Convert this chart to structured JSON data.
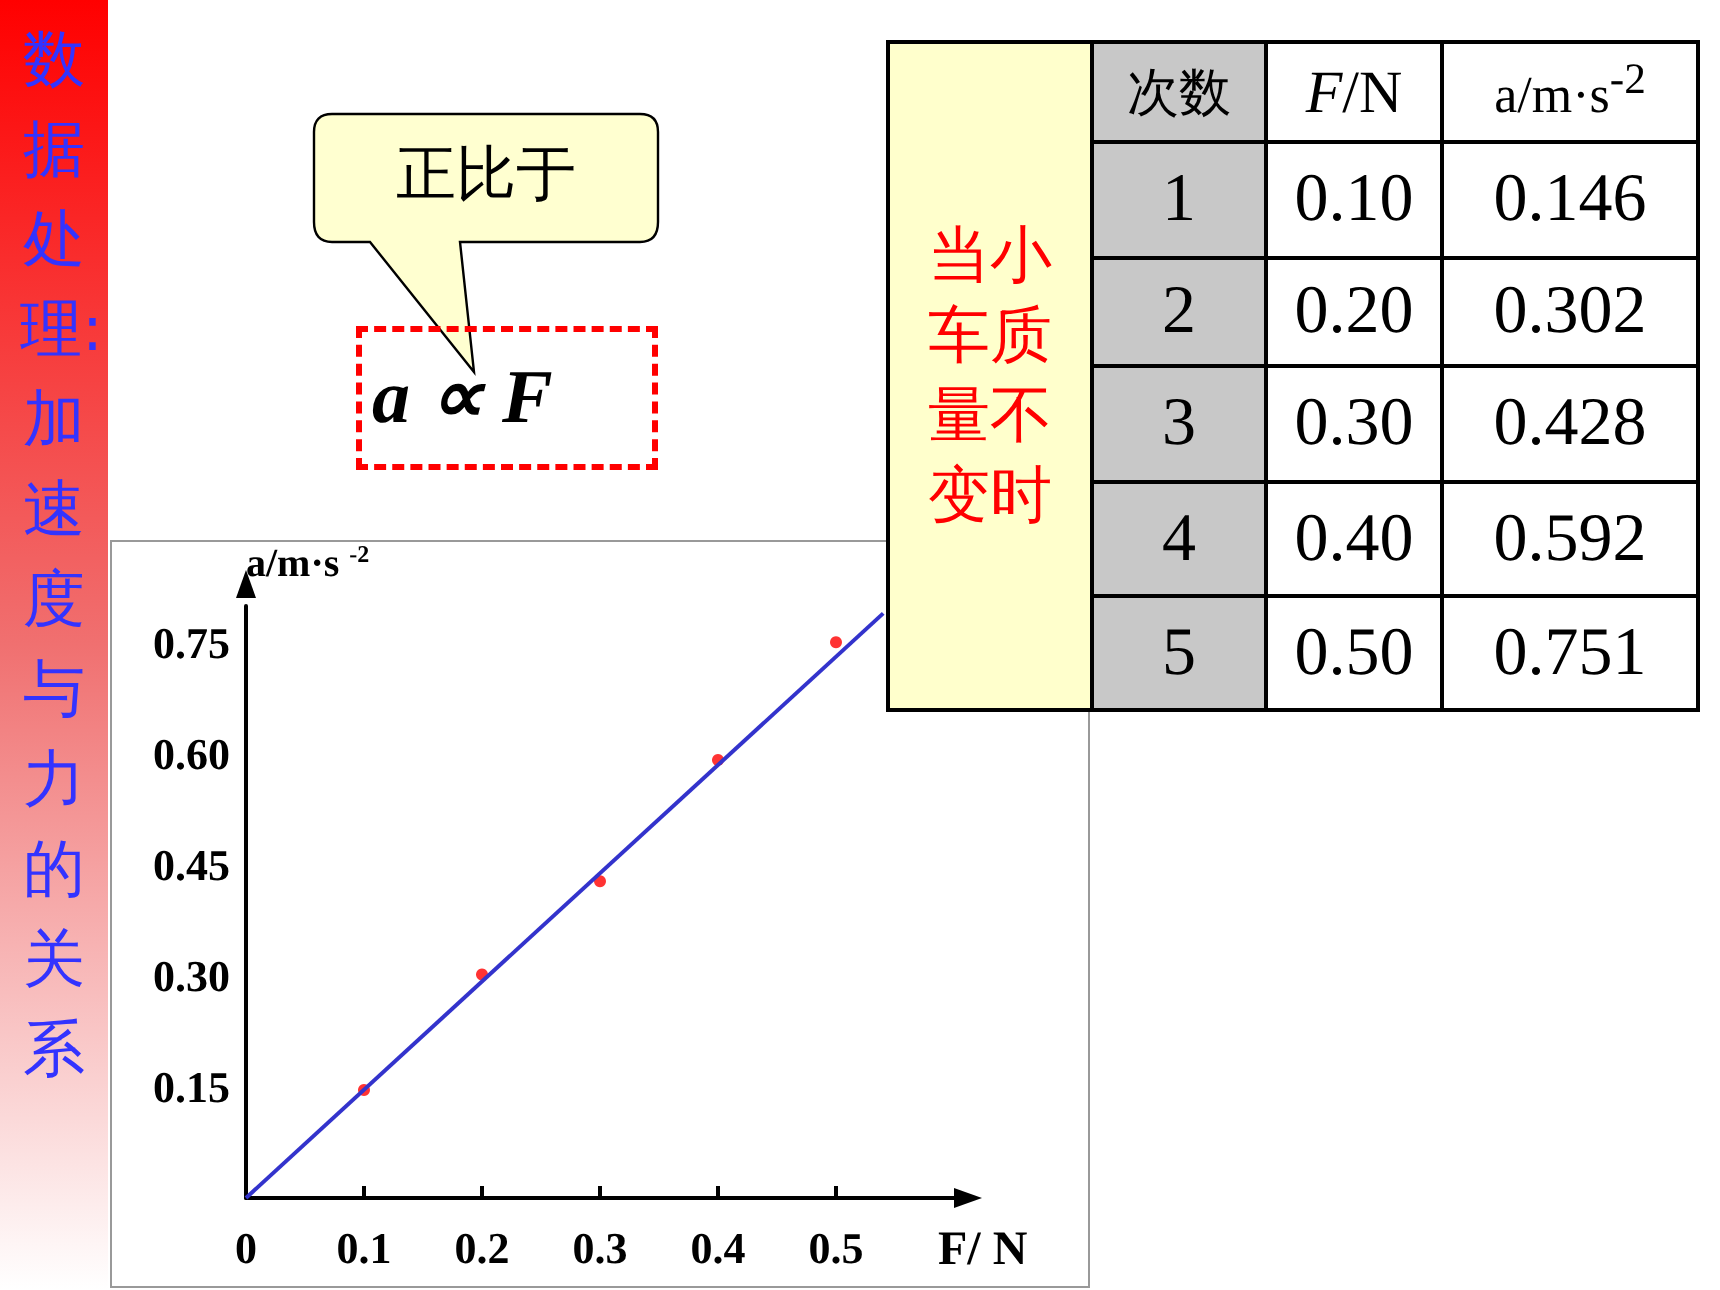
{
  "chart_data": {
    "type": "scatter",
    "title": "数据处理:加速度与力的关系",
    "xlabel": "F/ N",
    "ylabel": "a/m·s $^{-2}$",
    "x": [
      0.1,
      0.2,
      0.3,
      0.4,
      0.5
    ],
    "series": [
      {
        "color": "#ff0000",
        "marker": "circle",
        "values": [
          0.146,
          0.302,
          0.428,
          0.592,
          0.751
        ]
      },
      {
        "type": "line",
        "color": "#3333cc",
        "marker": "none",
        "x": [
          0,
          0.54
        ],
        "values": [
          0,
          0.79
        ]
      }
    ],
    "xlim": [
      0,
      0.6
    ],
    "ylim": [
      0,
      0.8
    ],
    "xticks": [
      0,
      0.1,
      0.2,
      0.3,
      0.4,
      0.5
    ],
    "yticks": [
      {
        "value": 0.15,
        "label": "0.15"
      },
      {
        "value": 0.3,
        "label": "0.30"
      },
      {
        "value": 0.45,
        "label": "0.45"
      },
      {
        "value": 0.6,
        "label": "0.60"
      },
      {
        "value": 0.75,
        "label": "0.75"
      }
    ],
    "annotations": [
      "正比于",
      "a ∝ F",
      "当小车质量不变时",
      "次数",
      "F/N",
      "a/m·s$^{-2}$",
      "1",
      "0.10",
      "0.146",
      "2",
      "0.20",
      "0.302",
      "3",
      "0.30",
      "0.428",
      "4",
      "0.40",
      "0.592",
      "5",
      "0.50",
      "0.751"
    ]
  }
}
